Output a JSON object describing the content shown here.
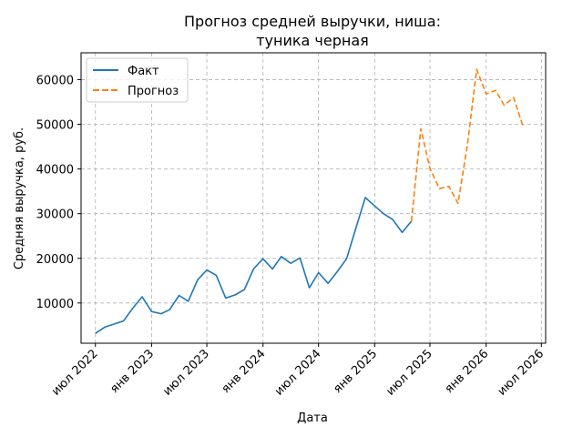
{
  "chart_data": {
    "type": "line",
    "title_line1": "Прогноз средней выручки, ниша:",
    "title_line2": "туника черная",
    "xlabel": "Дата",
    "ylabel": "Средняя выручка, руб.",
    "ylim": [
      1000,
      66000
    ],
    "xlim": [
      "2022-05-15",
      "2026-07-15"
    ],
    "grid": true,
    "legend_position": "top-left",
    "y_ticks": [
      10000,
      20000,
      30000,
      40000,
      50000,
      60000
    ],
    "x_ticks": [
      {
        "date": "2022-07-01",
        "label": "июл 2022"
      },
      {
        "date": "2023-01-01",
        "label": "янв 2023"
      },
      {
        "date": "2023-07-01",
        "label": "июл 2023"
      },
      {
        "date": "2024-01-01",
        "label": "янв 2024"
      },
      {
        "date": "2024-07-01",
        "label": "июл 2024"
      },
      {
        "date": "2025-01-01",
        "label": "янв 2025"
      },
      {
        "date": "2025-07-01",
        "label": "июл 2025"
      },
      {
        "date": "2026-01-01",
        "label": "янв 2026"
      },
      {
        "date": "2026-07-01",
        "label": "июл 2026"
      }
    ],
    "series": [
      {
        "name": "Факт",
        "color": "#1f77b4",
        "style": "solid",
        "points": [
          [
            "2022-07-01",
            3200
          ],
          [
            "2022-08-01",
            4600
          ],
          [
            "2022-09-01",
            5300
          ],
          [
            "2022-10-01",
            6000
          ],
          [
            "2022-11-01",
            8900
          ],
          [
            "2022-12-01",
            11400
          ],
          [
            "2023-01-01",
            8100
          ],
          [
            "2023-02-01",
            7600
          ],
          [
            "2023-03-01",
            8500
          ],
          [
            "2023-04-01",
            11700
          ],
          [
            "2023-05-01",
            10400
          ],
          [
            "2023-06-01",
            15200
          ],
          [
            "2023-07-01",
            17400
          ],
          [
            "2023-08-01",
            16200
          ],
          [
            "2023-09-01",
            11100
          ],
          [
            "2023-10-01",
            11800
          ],
          [
            "2023-11-01",
            13000
          ],
          [
            "2023-12-01",
            17600
          ],
          [
            "2024-01-01",
            19900
          ],
          [
            "2024-02-01",
            17600
          ],
          [
            "2024-03-01",
            20400
          ],
          [
            "2024-04-01",
            18900
          ],
          [
            "2024-05-01",
            20100
          ],
          [
            "2024-06-01",
            13400
          ],
          [
            "2024-07-01",
            16800
          ],
          [
            "2024-08-01",
            14400
          ],
          [
            "2024-09-01",
            17100
          ],
          [
            "2024-10-01",
            19900
          ],
          [
            "2024-11-01",
            26900
          ],
          [
            "2024-12-01",
            33600
          ],
          [
            "2025-01-01",
            31700
          ],
          [
            "2025-02-01",
            29900
          ],
          [
            "2025-03-01",
            28700
          ],
          [
            "2025-04-01",
            25800
          ],
          [
            "2025-05-01",
            28300
          ]
        ]
      },
      {
        "name": "Прогноз",
        "color": "#ff7f0e",
        "style": "dashed",
        "points": [
          [
            "2025-05-01",
            28300
          ],
          [
            "2025-06-01",
            49000
          ],
          [
            "2025-07-01",
            40100
          ],
          [
            "2025-08-01",
            35600
          ],
          [
            "2025-09-01",
            36100
          ],
          [
            "2025-10-01",
            32300
          ],
          [
            "2025-11-01",
            45500
          ],
          [
            "2025-12-01",
            62300
          ],
          [
            "2026-01-01",
            56800
          ],
          [
            "2026-02-01",
            57600
          ],
          [
            "2026-03-01",
            54300
          ],
          [
            "2026-04-01",
            56000
          ],
          [
            "2026-05-01",
            49700
          ]
        ]
      }
    ]
  }
}
